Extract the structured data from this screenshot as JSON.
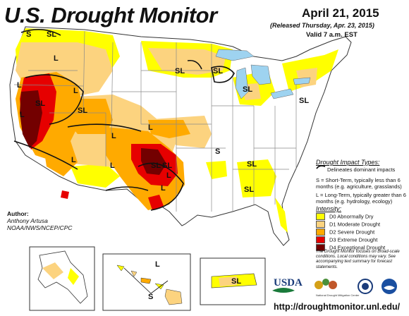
{
  "header": {
    "title": "U.S. Drought Monitor",
    "date": "April 21, 2015",
    "released": "(Released Thursday, Apr. 23, 2015)",
    "valid": "Valid 7 a.m. EST"
  },
  "map_labels": {
    "s_nw": "S",
    "l_oregon": "L",
    "sl_pnw": "SL",
    "sl_ca": "SL",
    "sl_id": "SL",
    "l_nv": "L",
    "l_nv2": "L",
    "l_mt": "L",
    "l_co": "L",
    "l_az": "L",
    "l_nm": "L",
    "sl_sd": "SL",
    "sl_mn": "SL",
    "sl_mi": "SL",
    "sl_ne": "SL",
    "sl_ok": "SL",
    "sl_tx": "SL",
    "l_tx": "L",
    "s_il": "S",
    "sl_ga": "SL",
    "sl_al": "SL",
    "l_ks": "L",
    "l_ok": "L",
    "l_hi": "L",
    "s_hi": "S",
    "sl_pr": "SL"
  },
  "legend": {
    "impact_title": "Drought Impact Types:",
    "delineates": "Delineates dominant impacts",
    "short_term": "S = Short-Term, typically less than 6 months (e.g. agriculture, grasslands)",
    "long_term": "L = Long-Term, typically greater than 6 months (e.g. hydrology, ecology)",
    "intensity_title": "Intensity:",
    "categories": [
      {
        "label": "D0 Abnormally Dry",
        "color": "#ffff00"
      },
      {
        "label": "D1 Moderate Drought",
        "color": "#fcd37f"
      },
      {
        "label": "D2 Severe Drought",
        "color": "#ffaa00"
      },
      {
        "label": "D3 Extreme Drought",
        "color": "#e60000"
      },
      {
        "label": "D4 Exceptional Drought",
        "color": "#730000"
      }
    ]
  },
  "note": "The Drought Monitor focuses on broad-scale conditions. Local conditions may vary. See accompanying text summary for forecast statements.",
  "author": {
    "label": "Author:",
    "name": "Anthony Artusa",
    "org": "NOAA/NWS/NCEP/CPC"
  },
  "logos": {
    "usda": "USDA",
    "ndmc": "National Drought Mitigation Center"
  },
  "url": "http://droughtmonitor.unl.edu/",
  "colors": {
    "water": "#9ed3f0",
    "state_line": "#8a8a8a",
    "boundary": "#111111"
  }
}
